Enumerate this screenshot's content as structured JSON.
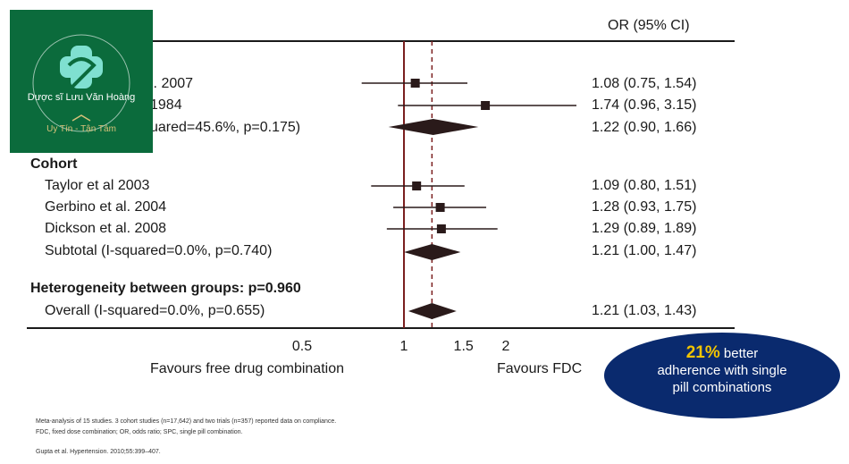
{
  "header": {
    "or_ci": "OR (95% CI)"
  },
  "chart_data": {
    "type": "forest",
    "null_value": 1,
    "pooled_value": 1.21,
    "xlim": [
      0.3,
      2.2
    ],
    "x_ticks": [
      "0.5",
      "1",
      "1.5",
      "2"
    ],
    "x_tick_values": [
      0.5,
      1,
      1.5,
      2
    ],
    "x_left_label": "Favours free drug combination",
    "x_right_label": "Favours FDC",
    "groups_heading": "Cohort",
    "heterogeneity": "Heterogeneity between groups: p=0.960",
    "rows": [
      {
        "label": "l. 2007",
        "or": 1.08,
        "lo": 0.75,
        "hi": 1.54,
        "ci_text": "1.08 (0.75, 1.54)",
        "kind": "study"
      },
      {
        "label": "1984",
        "or": 1.74,
        "lo": 0.96,
        "hi": 3.15,
        "ci_text": "1.74 (0.96, 3.15)",
        "kind": "study"
      },
      {
        "label": "uared=45.6%, p=0.175)",
        "or": 1.22,
        "lo": 0.9,
        "hi": 1.66,
        "ci_text": "1.22 (0.90, 1.66)",
        "kind": "subtotal"
      },
      {
        "label": "Taylor et al 2003",
        "or": 1.09,
        "lo": 0.8,
        "hi": 1.51,
        "ci_text": "1.09 (0.80, 1.51)",
        "kind": "study"
      },
      {
        "label": "Gerbino et al. 2004",
        "or": 1.28,
        "lo": 0.93,
        "hi": 1.75,
        "ci_text": "1.28 (0.93, 1.75)",
        "kind": "study"
      },
      {
        "label": "Dickson et al. 2008",
        "or": 1.29,
        "lo": 0.89,
        "hi": 1.89,
        "ci_text": "1.29 (0.89, 1.89)",
        "kind": "study"
      },
      {
        "label": "Subtotal (I-squared=0.0%, p=0.740)",
        "or": 1.21,
        "lo": 1.0,
        "hi": 1.47,
        "ci_text": "1.21 (1.00, 1.47)",
        "kind": "subtotal"
      },
      {
        "label": "Overall (I-squared=0.0%, p=0.655)",
        "or": 1.21,
        "lo": 1.03,
        "hi": 1.43,
        "ci_text": "1.21 (1.03, 1.43)",
        "kind": "subtotal"
      }
    ]
  },
  "logo": {
    "name": "Dược sĩ Lưu Văn Hoàng",
    "tagline": "Uy Tín - Tận Tâm"
  },
  "badge": {
    "pct": "21%",
    "line1": "better",
    "line2": "adherence with single",
    "line3": "pill combinations"
  },
  "footnotes": {
    "line1": "Meta-analysis of 15 studies. 3 cohort studies (n=17,642) and two trials (n=357) reported data on compliance.",
    "line2": "FDC, fixed dose combination; OR, odds ratio; SPC, single pill combination.",
    "line3": "Gupta et al. Hypertension. 2010;55:399–407."
  },
  "colors": {
    "axis_line": "#7a1f1f",
    "plot": "#2a1a1a",
    "logo_bg": "#0b6b3c",
    "badge_bg": "#0a2a6e",
    "badge_accent": "#f2c400"
  }
}
